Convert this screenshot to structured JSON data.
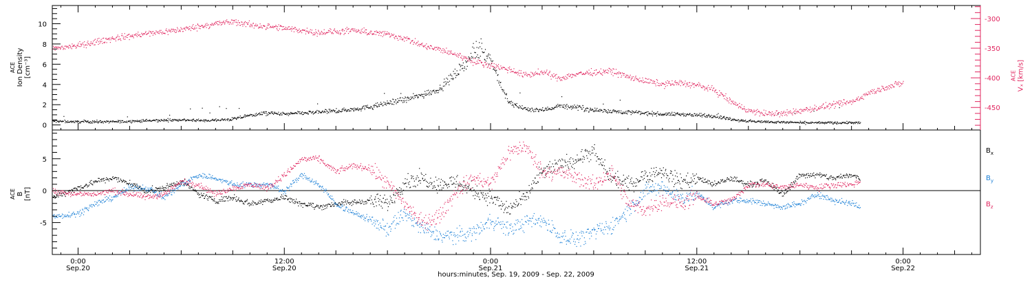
{
  "colors": {
    "black": "#000000",
    "blue": "#1a7fd6",
    "red": "#e0245e",
    "axis": "#000000"
  },
  "footer": {
    "caption": "hours:minutes, Sep. 19, 2009 - Sep. 22, 2009"
  },
  "x_ticks": [
    {
      "t": 0,
      "time": "0:00",
      "date": "Sep.20"
    },
    {
      "t": 12,
      "time": "12:00",
      "date": "Sep.20"
    },
    {
      "t": 24,
      "time": "0:00",
      "date": "Sep.21"
    },
    {
      "t": 36,
      "time": "12:00",
      "date": "Sep.21"
    },
    {
      "t": 48,
      "time": "0:00",
      "date": "Sep.22"
    }
  ],
  "chart_data": [
    {
      "type": "scatter",
      "panel": "top",
      "ylabel_left": [
        "ACE",
        "Ion Density",
        "[cm⁻³]"
      ],
      "ylabel_right": [
        "ACE",
        "Vₓ [km/s]"
      ],
      "x_unit": "hours from 2009-09-20 00:00 UT",
      "xlim": [
        -1.5,
        52.5
      ],
      "ylim_left": [
        -0.5,
        11.8
      ],
      "yticks_left": [
        0,
        2,
        4,
        6,
        8,
        10
      ],
      "ylim_right": [
        -488,
        -278
      ],
      "yticks_right": [
        -300,
        -350,
        -400,
        -450
      ],
      "series": [
        {
          "axis": "left",
          "color": "black",
          "points": [
            [
              -1.5,
              0.4
            ],
            [
              0,
              0.35
            ],
            [
              2,
              0.35
            ],
            [
              4,
              0.45
            ],
            [
              6,
              0.55
            ],
            [
              7,
              0.45
            ],
            [
              8,
              0.5
            ],
            [
              9,
              0.6
            ],
            [
              10,
              1.0
            ],
            [
              11,
              1.2
            ],
            [
              12,
              1.1
            ],
            [
              13,
              1.2
            ],
            [
              14,
              1.3
            ],
            [
              15,
              1.4
            ],
            [
              16,
              1.6
            ],
            [
              17,
              1.8
            ],
            [
              18,
              2.2
            ],
            [
              19,
              2.5
            ],
            [
              20,
              3.0
            ],
            [
              21,
              3.6
            ],
            [
              22,
              5.2
            ],
            [
              23,
              7.0
            ],
            [
              23.5,
              7.4
            ],
            [
              24,
              6.5
            ],
            [
              24.5,
              4.2
            ],
            [
              25,
              2.3
            ],
            [
              26,
              1.6
            ],
            [
              27,
              1.5
            ],
            [
              28,
              1.9
            ],
            [
              29,
              1.8
            ],
            [
              30,
              1.5
            ],
            [
              31,
              1.4
            ],
            [
              32,
              1.3
            ],
            [
              33,
              1.2
            ],
            [
              34,
              1.1
            ],
            [
              35,
              1.1
            ],
            [
              36,
              1.0
            ],
            [
              37,
              0.9
            ],
            [
              38,
              0.6
            ],
            [
              39,
              0.4
            ],
            [
              40,
              0.35
            ],
            [
              41,
              0.3
            ],
            [
              42,
              0.25
            ],
            [
              44,
              0.25
            ],
            [
              45.5,
              0.25
            ]
          ]
        },
        {
          "axis": "right",
          "color": "red",
          "points": [
            [
              -1.5,
              -350
            ],
            [
              0,
              -345
            ],
            [
              2,
              -333
            ],
            [
              4,
              -325
            ],
            [
              6,
              -318
            ],
            [
              8,
              -308
            ],
            [
              9,
              -305
            ],
            [
              10,
              -310
            ],
            [
              12,
              -316
            ],
            [
              14,
              -323
            ],
            [
              16,
              -320
            ],
            [
              18,
              -326
            ],
            [
              19,
              -333
            ],
            [
              20,
              -345
            ],
            [
              21,
              -352
            ],
            [
              22,
              -360
            ],
            [
              23,
              -372
            ],
            [
              24,
              -378
            ],
            [
              25,
              -385
            ],
            [
              26,
              -395
            ],
            [
              27,
              -390
            ],
            [
              28,
              -400
            ],
            [
              29,
              -393
            ],
            [
              30,
              -390
            ],
            [
              31,
              -388
            ],
            [
              32,
              -398
            ],
            [
              33,
              -405
            ],
            [
              34,
              -410
            ],
            [
              35,
              -408
            ],
            [
              36,
              -412
            ],
            [
              37,
              -420
            ],
            [
              38,
              -440
            ],
            [
              39,
              -455
            ],
            [
              40,
              -460
            ],
            [
              41,
              -460
            ],
            [
              42,
              -455
            ],
            [
              43,
              -450
            ],
            [
              44,
              -445
            ],
            [
              45,
              -440
            ],
            [
              46,
              -425
            ],
            [
              47,
              -415
            ],
            [
              48,
              -408
            ]
          ]
        }
      ]
    },
    {
      "type": "scatter",
      "panel": "bottom",
      "ylabel_left": [
        "ACE",
        "B",
        "[nT]"
      ],
      "x_unit": "hours from 2009-09-20 00:00 UT",
      "xlim": [
        -1.5,
        52.5
      ],
      "ylim": [
        -10,
        9.5
      ],
      "yticks": [
        5,
        0,
        -5
      ],
      "zero_line": true,
      "legend": [
        "Bx",
        "By",
        "Bz"
      ],
      "series": [
        {
          "name": "Bx",
          "color": "black",
          "points": [
            [
              -1.5,
              -1.0
            ],
            [
              0,
              0.5
            ],
            [
              1,
              1.5
            ],
            [
              2,
              2.0
            ],
            [
              3,
              1.2
            ],
            [
              4,
              0.0
            ],
            [
              5,
              0.5
            ],
            [
              6,
              1.5
            ],
            [
              7,
              -0.5
            ],
            [
              8,
              -1.5
            ],
            [
              9,
              -1.0
            ],
            [
              10,
              -2.0
            ],
            [
              11,
              -1.5
            ],
            [
              12,
              -1.0
            ],
            [
              13,
              -2.0
            ],
            [
              14,
              -2.5
            ],
            [
              15,
              -2.0
            ],
            [
              16,
              -1.8
            ],
            [
              17,
              -1.5
            ],
            [
              18,
              -2.0
            ],
            [
              19,
              1.5
            ],
            [
              20,
              2.0
            ],
            [
              21,
              1.0
            ],
            [
              22,
              1.5
            ],
            [
              23,
              0.0
            ],
            [
              24,
              -1.0
            ],
            [
              25,
              -3.0
            ],
            [
              26,
              -1.0
            ],
            [
              27,
              3.0
            ],
            [
              28,
              4.0
            ],
            [
              29,
              5.0
            ],
            [
              30,
              6.0
            ],
            [
              31,
              2.0
            ],
            [
              32,
              1.0
            ],
            [
              33,
              2.5
            ],
            [
              34,
              3.0
            ],
            [
              35,
              1.5
            ],
            [
              36,
              2.0
            ],
            [
              37,
              1.0
            ],
            [
              38,
              2.0
            ],
            [
              39,
              1.0
            ],
            [
              40,
              1.5
            ],
            [
              41,
              -0.5
            ],
            [
              42,
              2.5
            ],
            [
              43,
              2.5
            ],
            [
              44,
              2.0
            ],
            [
              45,
              2.5
            ],
            [
              45.5,
              2.0
            ]
          ]
        },
        {
          "name": "By",
          "color": "blue",
          "points": [
            [
              -1.5,
              -4.0
            ],
            [
              0,
              -3.5
            ],
            [
              1,
              -2.0
            ],
            [
              2,
              -1.0
            ],
            [
              3,
              0.5
            ],
            [
              4,
              0.5
            ],
            [
              5,
              -1.0
            ],
            [
              6,
              1.0
            ],
            [
              7,
              2.5
            ],
            [
              8,
              2.0
            ],
            [
              9,
              1.0
            ],
            [
              10,
              1.0
            ],
            [
              11,
              1.0
            ],
            [
              12,
              0.0
            ],
            [
              13,
              2.5
            ],
            [
              14,
              1.0
            ],
            [
              15,
              -2.0
            ],
            [
              16,
              -3.5
            ],
            [
              17,
              -4.5
            ],
            [
              18,
              -6.0
            ],
            [
              19,
              -3.5
            ],
            [
              20,
              -6.0
            ],
            [
              21,
              -7.0
            ],
            [
              22,
              -7.0
            ],
            [
              23,
              -6.5
            ],
            [
              24,
              -4.5
            ],
            [
              25,
              -6.0
            ],
            [
              26,
              -5.0
            ],
            [
              27,
              -4.5
            ],
            [
              28,
              -7.0
            ],
            [
              29,
              -7.5
            ],
            [
              30,
              -6.5
            ],
            [
              31,
              -5.5
            ],
            [
              32,
              -3.0
            ],
            [
              33,
              0.0
            ],
            [
              34,
              0.5
            ],
            [
              35,
              -1.0
            ],
            [
              36,
              -0.5
            ],
            [
              37,
              -2.5
            ],
            [
              38,
              -1.5
            ],
            [
              39,
              -1.5
            ],
            [
              40,
              -2.0
            ],
            [
              41,
              -2.5
            ],
            [
              42,
              -2.0
            ],
            [
              43,
              -0.5
            ],
            [
              44,
              -1.5
            ],
            [
              45,
              -2.0
            ],
            [
              45.5,
              -2.5
            ]
          ]
        },
        {
          "name": "Bz",
          "color": "red",
          "points": [
            [
              -1.5,
              0.0
            ],
            [
              0,
              -0.5
            ],
            [
              1,
              -0.5
            ],
            [
              2,
              0.0
            ],
            [
              3,
              -0.5
            ],
            [
              4,
              -1.0
            ],
            [
              5,
              -0.5
            ],
            [
              6,
              1.5
            ],
            [
              7,
              1.0
            ],
            [
              8,
              -0.5
            ],
            [
              9,
              0.5
            ],
            [
              10,
              1.0
            ],
            [
              11,
              0.5
            ],
            [
              12,
              2.5
            ],
            [
              13,
              5.0
            ],
            [
              14,
              5.0
            ],
            [
              15,
              3.0
            ],
            [
              16,
              4.0
            ],
            [
              17,
              3.5
            ],
            [
              18,
              1.0
            ],
            [
              19,
              -2.0
            ],
            [
              20,
              -5.0
            ],
            [
              21,
              -4.0
            ],
            [
              22,
              0.0
            ],
            [
              23,
              2.0
            ],
            [
              24,
              1.0
            ],
            [
              25,
              6.0
            ],
            [
              26,
              7.0
            ],
            [
              27,
              3.0
            ],
            [
              28,
              3.0
            ],
            [
              29,
              2.0
            ],
            [
              30,
              1.0
            ],
            [
              31,
              3.0
            ],
            [
              32,
              -2.0
            ],
            [
              33,
              -3.0
            ],
            [
              34,
              -1.5
            ],
            [
              35,
              -2.0
            ],
            [
              36,
              -1.0
            ],
            [
              37,
              -2.0
            ],
            [
              38,
              -1.5
            ],
            [
              39,
              1.0
            ],
            [
              40,
              1.0
            ],
            [
              41,
              0.5
            ],
            [
              42,
              1.0
            ],
            [
              43,
              0.5
            ],
            [
              44,
              1.0
            ],
            [
              45,
              1.0
            ],
            [
              45.5,
              1.5
            ]
          ]
        }
      ]
    }
  ]
}
